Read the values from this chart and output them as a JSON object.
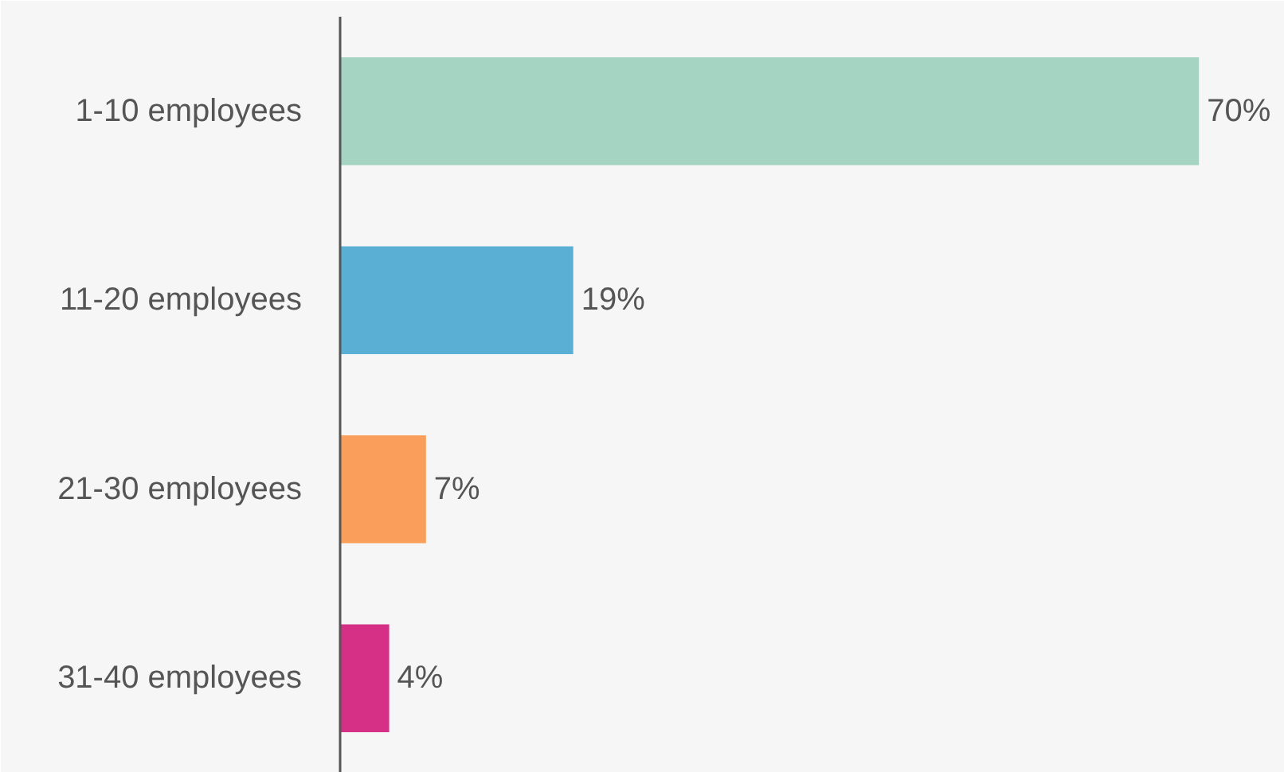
{
  "chart_data": {
    "type": "bar",
    "orientation": "horizontal",
    "categories": [
      "1-10 employees",
      "11-20 employees",
      "21-30 employees",
      "31-40 employees"
    ],
    "values": [
      70,
      19,
      7,
      4
    ],
    "colors": [
      "#a5d4c3",
      "#5aafd4",
      "#f99f5b",
      "#d62f86"
    ],
    "value_labels": [
      "70%",
      "19%",
      "7%",
      "4%"
    ],
    "xlim": [
      0,
      77
    ],
    "tick_labels": "y",
    "grid": false
  }
}
